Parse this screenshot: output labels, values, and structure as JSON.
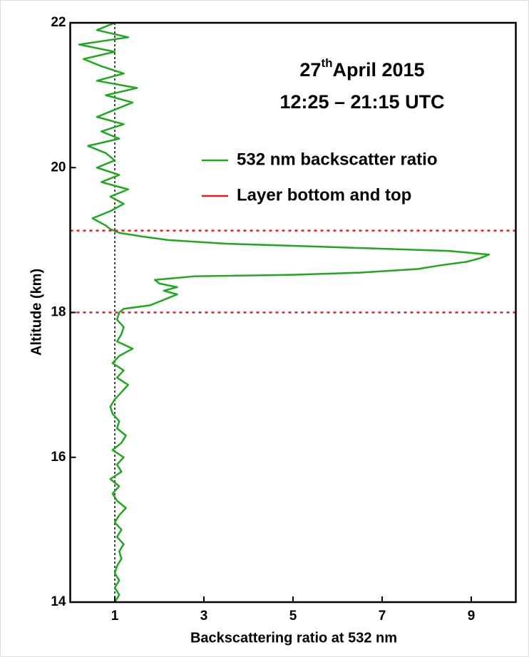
{
  "chart_data": {
    "type": "profile",
    "title": {
      "day": "27",
      "ordinal": "th",
      "month_year": "April 2015"
    },
    "subtitle": "12:25 – 21:15 UTC",
    "x_label": "Backscattering ratio at 532 nm",
    "y_label": "Altitude (km)",
    "xlim": [
      0,
      10
    ],
    "ylim": [
      14,
      22
    ],
    "xticks": [
      1,
      3,
      5,
      7,
      9
    ],
    "yticks": [
      14,
      16,
      18,
      20,
      22
    ],
    "reference_x": 1,
    "series": [
      {
        "name": "532 nm backscatter ratio",
        "color": "#1fa81f",
        "y": [
          14.0,
          14.1,
          14.2,
          14.3,
          14.4,
          14.5,
          14.6,
          14.7,
          14.8,
          14.9,
          15.0,
          15.1,
          15.2,
          15.3,
          15.4,
          15.5,
          15.6,
          15.7,
          15.8,
          15.9,
          16.0,
          16.1,
          16.2,
          16.3,
          16.4,
          16.5,
          16.6,
          16.7,
          16.8,
          16.9,
          17.0,
          17.1,
          17.2,
          17.3,
          17.4,
          17.5,
          17.6,
          17.7,
          17.8,
          17.9,
          18.0,
          18.05,
          18.1,
          18.15,
          18.2,
          18.25,
          18.3,
          18.35,
          18.4,
          18.45,
          18.5,
          18.52,
          18.55,
          18.6,
          18.65,
          18.7,
          18.75,
          18.8,
          18.85,
          18.9,
          18.95,
          19.0,
          19.05,
          19.1,
          19.15,
          19.2,
          19.3,
          19.4,
          19.5,
          19.6,
          19.7,
          19.8,
          19.9,
          20.0,
          20.1,
          20.2,
          20.3,
          20.4,
          20.5,
          20.6,
          20.7,
          20.8,
          20.9,
          21.0,
          21.1,
          21.2,
          21.3,
          21.4,
          21.5,
          21.6,
          21.7,
          21.8,
          21.9,
          22.0
        ],
        "x": [
          1.0,
          1.1,
          1.0,
          1.1,
          1.0,
          1.05,
          1.15,
          1.1,
          1.2,
          1.05,
          1.15,
          1.0,
          1.1,
          1.25,
          1.05,
          0.95,
          1.1,
          0.9,
          1.15,
          1.05,
          1.2,
          0.95,
          1.15,
          1.25,
          1.05,
          1.1,
          0.95,
          0.9,
          1.0,
          1.15,
          1.3,
          1.05,
          1.2,
          0.95,
          1.1,
          1.4,
          1.05,
          1.15,
          1.2,
          1.05,
          1.1,
          1.2,
          1.8,
          2.0,
          2.2,
          2.4,
          2.1,
          2.4,
          2.0,
          1.9,
          2.8,
          5.0,
          6.5,
          7.8,
          8.3,
          8.9,
          9.2,
          9.4,
          8.5,
          6.0,
          3.5,
          2.2,
          1.6,
          1.1,
          0.9,
          0.8,
          0.5,
          0.9,
          1.2,
          0.9,
          1.3,
          0.7,
          1.1,
          0.6,
          1.0,
          0.8,
          0.4,
          1.1,
          0.7,
          1.2,
          0.6,
          1.0,
          1.4,
          0.8,
          1.5,
          0.6,
          1.2,
          0.7,
          0.3,
          1.0,
          0.2,
          1.3,
          0.6,
          1.0
        ]
      },
      {
        "name": "Layer bottom and top",
        "color": "#e8191f",
        "lines_y": [
          18.0,
          19.13
        ]
      }
    ]
  }
}
